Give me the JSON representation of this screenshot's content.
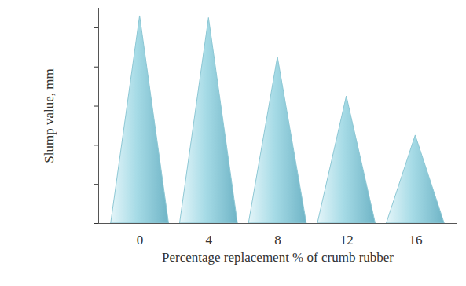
{
  "chart_data": {
    "type": "cone",
    "x_label": "Percentage replacement % of crumb rubber",
    "y_label": "Slump value, mm",
    "categories": [
      "0",
      "4",
      "8",
      "12",
      "16"
    ],
    "values": [
      106,
      105,
      85,
      65,
      45
    ],
    "color": "#a6dbe6",
    "ylim": [
      0,
      110
    ],
    "yticks": [
      0,
      20,
      40,
      60,
      80,
      100
    ],
    "tick_labels": "x",
    "grid": false
  }
}
